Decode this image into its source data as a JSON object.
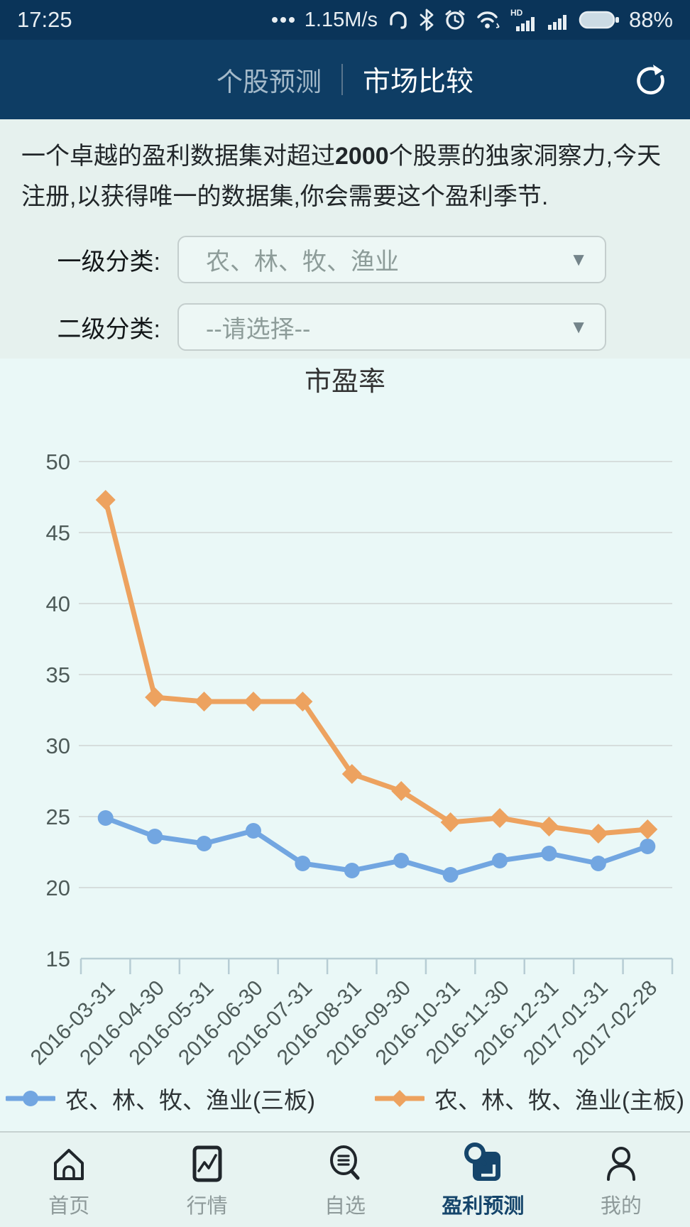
{
  "status_bar": {
    "time": "17:25",
    "network_speed": "1.15M/s",
    "battery_percent": "88%",
    "icons": [
      "more-dots-icon",
      "headset-icon",
      "bluetooth-icon",
      "alarm-icon",
      "wifi-icon",
      "hd-signal-icon",
      "signal-icon",
      "battery-icon"
    ]
  },
  "header": {
    "tab_inactive": "个股预测",
    "tab_active": "市场比较",
    "refresh_icon": "refresh-icon",
    "background": "#0e3d64"
  },
  "promo": {
    "text_before": "一个卓越的盈利数据集对超过",
    "highlight": "2000",
    "text_after": "个股票的独家洞察力,今天注册,以获得唯一的数据集,你会需要这个盈利季节."
  },
  "filters": {
    "level1_label": "一级分类:",
    "level1_value": "农、林、牧、渔业",
    "level2_label": "二级分类:",
    "level2_value": "--请选择--"
  },
  "chart_data": {
    "type": "line",
    "title": "市盈率",
    "categories": [
      "2016-03-31",
      "2016-04-30",
      "2016-05-31",
      "2016-06-30",
      "2016-07-31",
      "2016-08-31",
      "2016-09-30",
      "2016-10-31",
      "2016-11-30",
      "2016-12-31",
      "2017-01-31",
      "2017-02-28"
    ],
    "series": [
      {
        "name": "农、林、牧、渔业(三板)",
        "color": "#72a6e1",
        "marker": "circle",
        "values": [
          24.9,
          23.6,
          23.1,
          24.0,
          21.7,
          21.2,
          21.9,
          20.9,
          21.9,
          22.4,
          21.7,
          22.9
        ]
      },
      {
        "name": "农、林、牧、渔业(主板)",
        "color": "#eda25f",
        "marker": "diamond",
        "values": [
          47.3,
          33.4,
          33.1,
          33.1,
          33.1,
          28.0,
          26.8,
          24.6,
          24.9,
          24.3,
          23.8,
          24.1
        ]
      }
    ],
    "ylim": [
      15,
      50
    ],
    "yticks": [
      15,
      20,
      25,
      30,
      35,
      40,
      45,
      50
    ],
    "grid": true,
    "legend_position": "bottom",
    "grid_color": "#d6dedd",
    "axis_color": "#b7cdd4",
    "axis_text_color": "#4e5b59"
  },
  "bottom_nav": {
    "items": [
      {
        "label": "首页",
        "icon": "home-icon",
        "active": false
      },
      {
        "label": "行情",
        "icon": "market-chart-icon",
        "active": false
      },
      {
        "label": "自选",
        "icon": "watchlist-search-icon",
        "active": false
      },
      {
        "label": "盈利预测",
        "icon": "profit-forecast-icon",
        "active": true
      },
      {
        "label": "我的",
        "icon": "profile-icon",
        "active": false
      }
    ],
    "active_color": "#15456b"
  }
}
